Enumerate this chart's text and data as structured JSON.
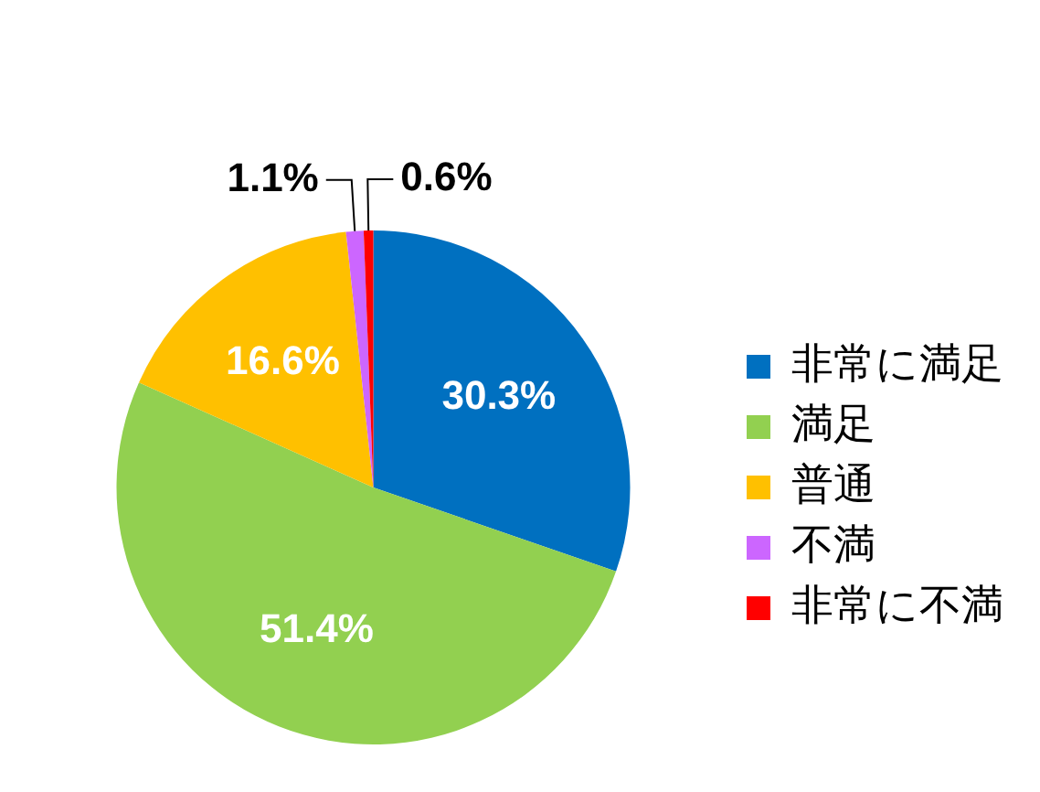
{
  "chart_data": {
    "type": "pie",
    "categories": [
      "非常に満足",
      "満足",
      "普通",
      "不満",
      "非常に不満"
    ],
    "values": [
      30.3,
      51.4,
      16.6,
      1.1,
      0.6
    ],
    "value_labels": [
      "30.3%",
      "51.4%",
      "16.6%",
      "1.1%",
      "0.6%"
    ],
    "colors": [
      "#0070c0",
      "#92d050",
      "#ffc000",
      "#cc66ff",
      "#ff0000"
    ],
    "legend": "right"
  }
}
